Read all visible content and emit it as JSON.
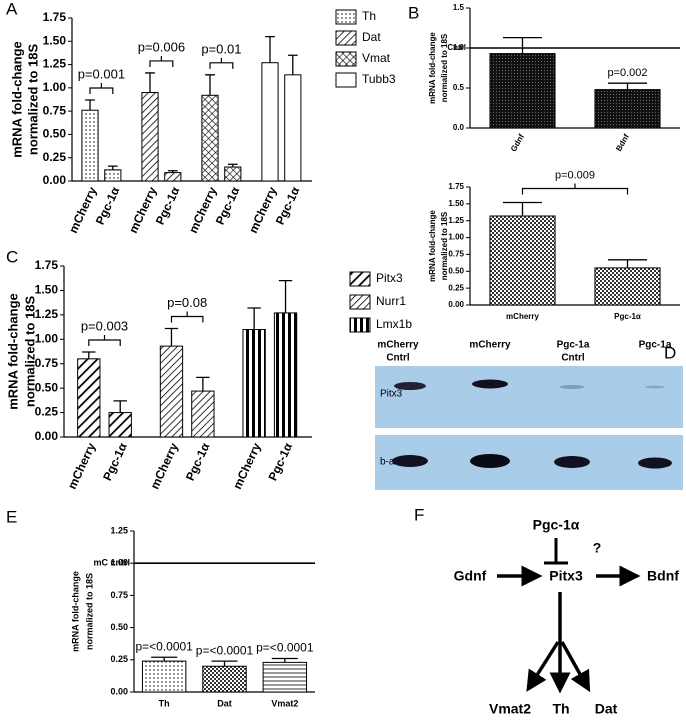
{
  "panel_labels": [
    "A",
    "B",
    "C",
    "D",
    "E",
    "F"
  ],
  "chart_data": [
    {
      "type": "grouped-bar",
      "ylabel": [
        "mRNA fold-change",
        "normalized to 18S"
      ],
      "categories": [
        "mCherry",
        "Pgc-1α"
      ],
      "ylim": [
        0,
        1.75
      ],
      "yticks": [
        {
          "value": 0,
          "label": "0.00"
        },
        0.25,
        {
          "value": 0.5,
          "label": "0.50"
        },
        0.75,
        {
          "value": 1,
          "label": "1.00"
        },
        1.25,
        {
          "value": 1.5,
          "label": "1.50"
        },
        1.75
      ],
      "series": [
        {
          "name": "Th",
          "pattern": "dots",
          "values": [
            0.76,
            0.12
          ],
          "errors": [
            0.11,
            0.04
          ],
          "annotation": "p=0.001"
        },
        {
          "name": "Dat",
          "pattern": "diagonal",
          "values": [
            0.95,
            0.09
          ],
          "errors": [
            0.21,
            0.02
          ],
          "annotation": "p=0.006"
        },
        {
          "name": "Vmat",
          "pattern": "crosshatch",
          "values": [
            0.92,
            0.15
          ],
          "errors": [
            0.22,
            0.03
          ],
          "annotation": "p=0.01"
        },
        {
          "name": "Tubb3",
          "pattern": "none",
          "values": [
            1.27,
            1.14
          ],
          "errors": [
            0.28,
            0.21
          ]
        }
      ]
    },
    {
      "type": "bar",
      "ylabel": [
        "mRNA fold-change",
        "normalized to 18S"
      ],
      "categories": [
        "Gdnf",
        "Bdnf"
      ],
      "ylim": [
        0,
        1.5
      ],
      "yticks": [
        {
          "value": 0,
          "label": "0.0"
        },
        0.5,
        {
          "value": 1,
          "label": "1.0"
        },
        1.5
      ],
      "values": [
        0.93,
        0.48
      ],
      "errors": [
        0.2,
        0.08
      ],
      "patterns": [
        "dark-stipple",
        "dark-stipple"
      ],
      "annotations": [
        null,
        "p=0.002"
      ],
      "reference": {
        "value": 1,
        "label": "Cntrl"
      }
    },
    {
      "type": "bar",
      "ylabel": [
        "mRNA fold-change",
        "normalized to 18S"
      ],
      "categories": [
        "mCherry",
        "Pgc-1α"
      ],
      "ylim": [
        0,
        1.75
      ],
      "yticks": [
        {
          "value": 0,
          "label": "0.00"
        },
        0.25,
        {
          "value": 0.5,
          "label": "0.50"
        },
        0.75,
        {
          "value": 1,
          "label": "1.00"
        },
        1.25,
        {
          "value": 1.5,
          "label": "1.50"
        },
        1.75
      ],
      "values": [
        1.32,
        0.55
      ],
      "errors": [
        0.2,
        0.12
      ],
      "patterns": [
        "checker",
        "checker"
      ],
      "annotation": "p=0.009"
    },
    {
      "type": "grouped-bar",
      "ylabel": [
        "mRNA fold-change",
        "normalized to 18S"
      ],
      "categories": [
        "mCherry",
        "Pgc-1α"
      ],
      "ylim": [
        0,
        1.75
      ],
      "yticks": [
        {
          "value": 0,
          "label": "0.00"
        },
        0.25,
        {
          "value": 0.5,
          "label": "0.50"
        },
        0.75,
        {
          "value": 1,
          "label": "1.00"
        },
        1.25,
        {
          "value": 1.5,
          "label": "1.50"
        },
        1.75
      ],
      "series": [
        {
          "name": "Pitx3",
          "pattern": "bold-diagonal",
          "values": [
            0.8,
            0.25
          ],
          "errors": [
            0.07,
            0.12
          ],
          "annotation": "p=0.003"
        },
        {
          "name": "Nurr1",
          "pattern": "diagonal",
          "values": [
            0.93,
            0.47
          ],
          "errors": [
            0.18,
            0.14
          ],
          "annotation": "p=0.08"
        },
        {
          "name": "Lmx1b",
          "pattern": "vertical",
          "values": [
            1.1,
            1.27
          ],
          "errors": [
            0.22,
            0.33
          ]
        }
      ]
    },
    {
      "type": "bar",
      "ylabel": [
        "mRNA fold-change",
        "normalized to 18S"
      ],
      "categories": [
        "Th",
        "Dat",
        "Vmat2"
      ],
      "ylim": [
        0,
        1.25
      ],
      "yticks": [
        {
          "value": 0,
          "label": "0.00"
        },
        0.25,
        {
          "value": 0.5,
          "label": "0.50"
        },
        0.75,
        {
          "value": 1,
          "label": "1.00"
        },
        1.25
      ],
      "values": [
        0.24,
        0.2,
        0.23
      ],
      "errors": [
        0.03,
        0.04,
        0.03
      ],
      "patterns": [
        "dots",
        "checker",
        "horizontal"
      ],
      "annotations": [
        "p=<0.0001",
        "p=<0.0001",
        "p=<0.0001"
      ],
      "reference": {
        "value": 1,
        "label": "mC cntrl"
      }
    }
  ],
  "blot": {
    "lanes": [
      [
        "mCherry",
        "Cntrl"
      ],
      [
        "mCherry"
      ],
      [
        "Pgc-1a",
        "Cntrl"
      ],
      [
        "Pgc-1a"
      ]
    ],
    "rows": [
      "Pitx3",
      "b-actin"
    ]
  },
  "diagram": {
    "nodes": [
      "Pgc-1α",
      "Gdnf",
      "Pitx3",
      "Bdnf",
      "Vmat2",
      "Th",
      "Dat"
    ],
    "question": "?"
  }
}
